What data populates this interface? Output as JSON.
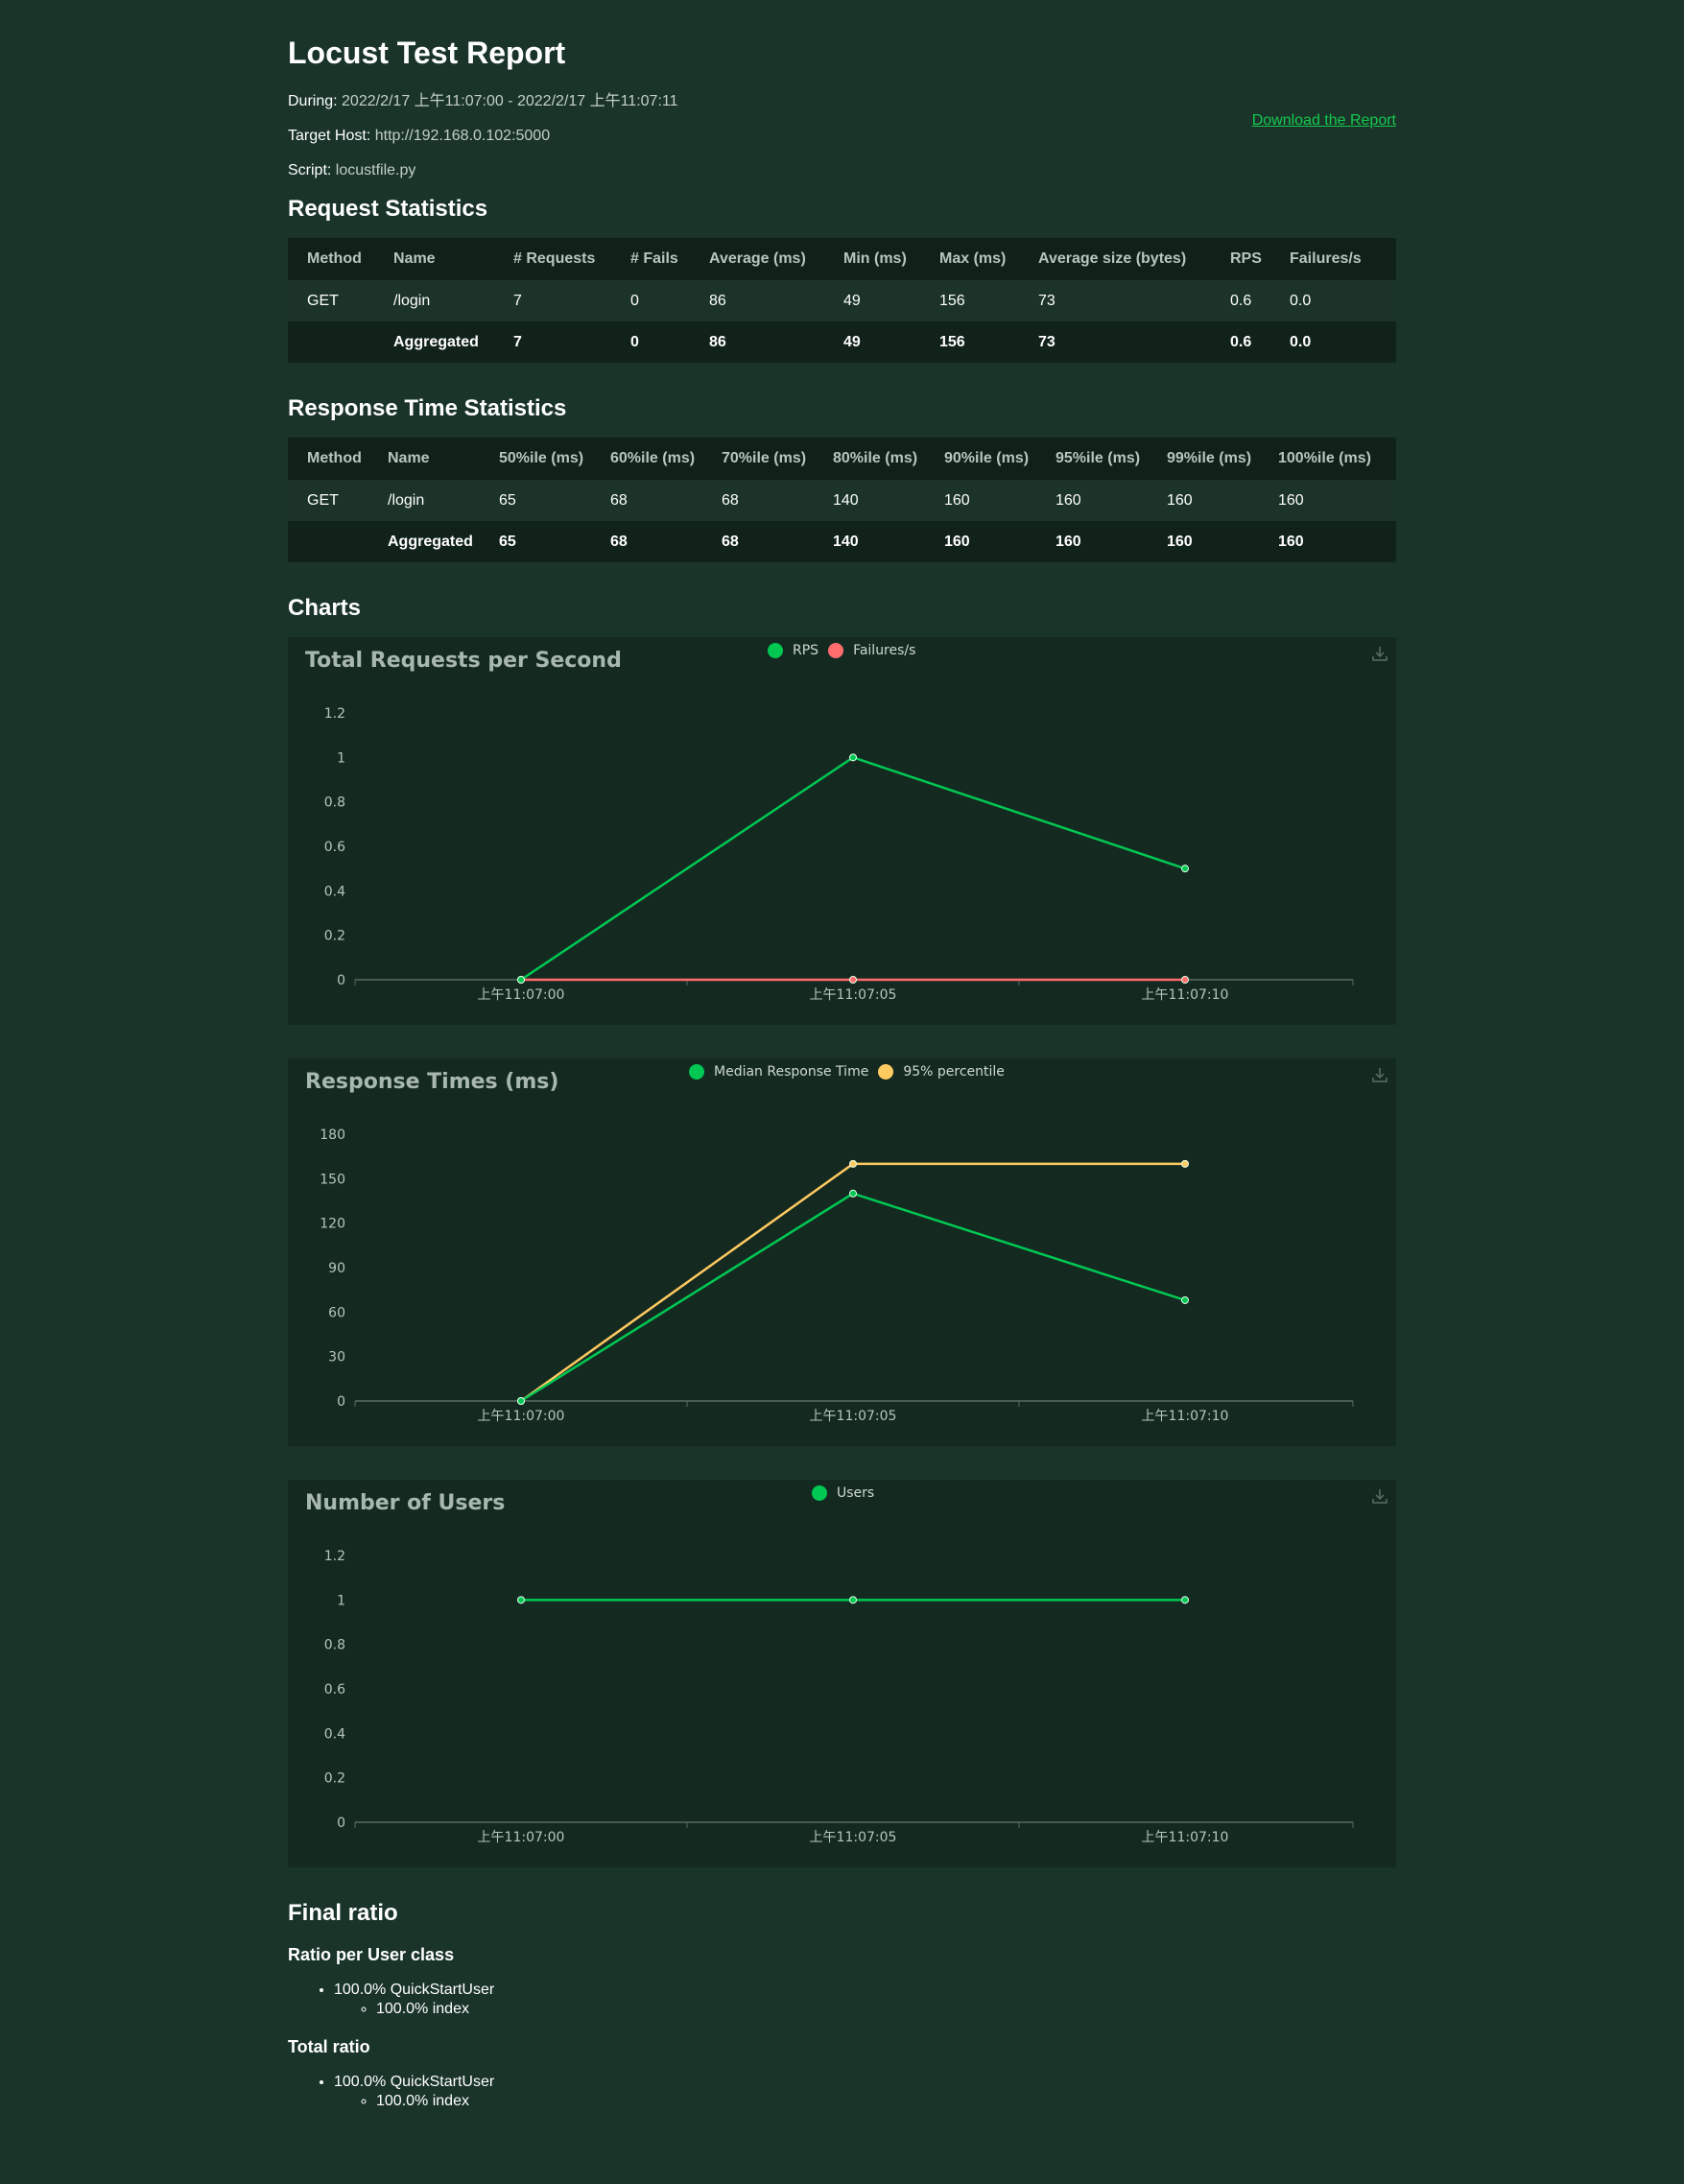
{
  "header": {
    "title": "Locust Test Report",
    "during_label": "During:",
    "during_value": "2022/2/17 上午11:07:00 - 2022/2/17 上午11:07:11",
    "host_label": "Target Host:",
    "host_value": "http://192.168.0.102:5000",
    "script_label": "Script:",
    "script_value": "locustfile.py",
    "download_label": "Download the Report"
  },
  "request_stats": {
    "title": "Request Statistics",
    "columns": [
      "Method",
      "Name",
      "# Requests",
      "# Fails",
      "Average (ms)",
      "Min (ms)",
      "Max (ms)",
      "Average size (bytes)",
      "RPS",
      "Failures/s"
    ],
    "rows": [
      [
        "GET",
        "/login",
        "7",
        "0",
        "86",
        "49",
        "156",
        "73",
        "0.6",
        "0.0"
      ],
      [
        "",
        "Aggregated",
        "7",
        "0",
        "86",
        "49",
        "156",
        "73",
        "0.6",
        "0.0"
      ]
    ]
  },
  "response_stats": {
    "title": "Response Time Statistics",
    "columns": [
      "Method",
      "Name",
      "50%ile (ms)",
      "60%ile (ms)",
      "70%ile (ms)",
      "80%ile (ms)",
      "90%ile (ms)",
      "95%ile (ms)",
      "99%ile (ms)",
      "100%ile (ms)"
    ],
    "rows": [
      [
        "GET",
        "/login",
        "65",
        "68",
        "68",
        "140",
        "160",
        "160",
        "160",
        "160"
      ],
      [
        "",
        "Aggregated",
        "65",
        "68",
        "68",
        "140",
        "160",
        "160",
        "160",
        "160"
      ]
    ]
  },
  "charts_title": "Charts",
  "chart_data": [
    {
      "type": "line",
      "title": "Total Requests per Second",
      "x": [
        "上午11:07:00",
        "上午11:07:05",
        "上午11:07:10"
      ],
      "ylim": [
        0,
        1.2
      ],
      "yticks": [
        "0",
        "0.2",
        "0.4",
        "0.6",
        "0.8",
        "1",
        "1.2"
      ],
      "series": [
        {
          "name": "RPS",
          "values": [
            0,
            1,
            0.5
          ],
          "color": "#00c853"
        },
        {
          "name": "Failures/s",
          "values": [
            0,
            0,
            0
          ],
          "color": "#ff6d6d"
        }
      ]
    },
    {
      "type": "line",
      "title": "Response Times (ms)",
      "x": [
        "上午11:07:00",
        "上午11:07:05",
        "上午11:07:10"
      ],
      "ylim": [
        0,
        180
      ],
      "yticks": [
        "0",
        "30",
        "60",
        "90",
        "120",
        "150",
        "180"
      ],
      "series": [
        {
          "name": "Median Response Time",
          "values": [
            0,
            140,
            68
          ],
          "color": "#00c853"
        },
        {
          "name": "95% percentile",
          "values": [
            0,
            160,
            160
          ],
          "color": "#ffca5f"
        }
      ]
    },
    {
      "type": "line",
      "title": "Number of Users",
      "x": [
        "上午11:07:00",
        "上午11:07:05",
        "上午11:07:10"
      ],
      "ylim": [
        0,
        1.2
      ],
      "yticks": [
        "0",
        "0.2",
        "0.4",
        "0.6",
        "0.8",
        "1",
        "1.2"
      ],
      "series": [
        {
          "name": "Users",
          "values": [
            1,
            1,
            1
          ],
          "color": "#00c853"
        }
      ]
    }
  ],
  "final_ratio": {
    "title": "Final ratio",
    "per_class_title": "Ratio per User class",
    "per_class_item": "100.0% QuickStartUser",
    "per_class_sub": "100.0% index",
    "total_title": "Total ratio",
    "total_item": "100.0% QuickStartUser",
    "total_sub": "100.0% index"
  }
}
